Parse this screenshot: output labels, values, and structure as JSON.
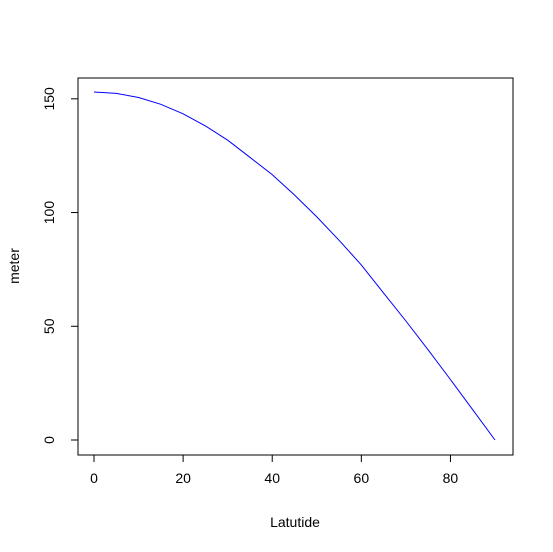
{
  "chart_data": {
    "type": "line",
    "title": "",
    "xlabel": "Latutide",
    "ylabel": "meter",
    "xlim": [
      0,
      90
    ],
    "ylim": [
      0,
      153
    ],
    "xticks": [
      0,
      20,
      40,
      60,
      80
    ],
    "yticks": [
      0,
      50,
      100,
      150
    ],
    "xtick_labels": [
      "0",
      "20",
      "40",
      "60",
      "80"
    ],
    "ytick_labels": [
      "0",
      "50",
      "100",
      "150"
    ],
    "grid": false,
    "legend": "none",
    "series": [
      {
        "color": "#0000ff",
        "x": [
          0,
          5,
          10,
          15,
          20,
          25,
          30,
          35,
          40,
          45,
          50,
          55,
          60,
          65,
          70,
          75,
          80,
          85,
          90
        ],
        "y": [
          153,
          152.4,
          150.6,
          147.6,
          143.4,
          138.1,
          131.8,
          124.3,
          116.7,
          107.7,
          98.1,
          87.8,
          77.0,
          64.6,
          52.3,
          39.6,
          26.6,
          13.3,
          0
        ]
      }
    ]
  }
}
